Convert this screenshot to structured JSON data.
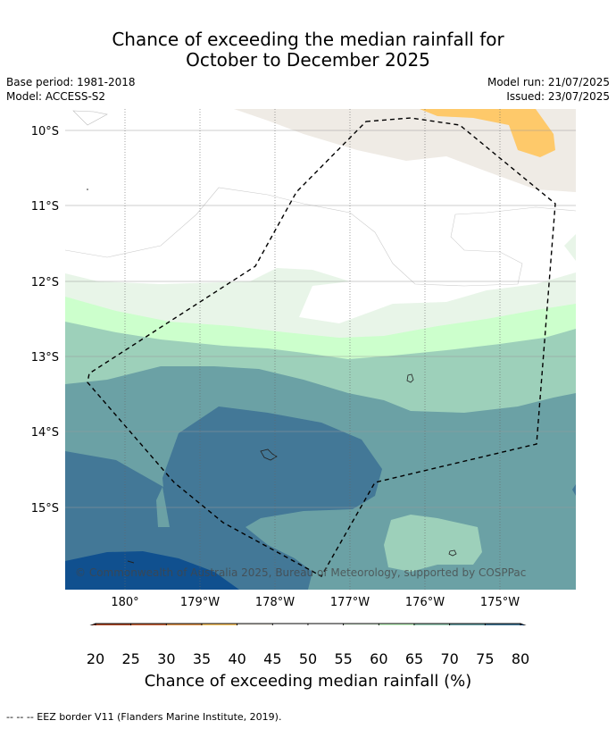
{
  "header": {
    "title_line1": "Chance of exceeding the median rainfall for",
    "title_line2": "October to December 2025",
    "base_period": "Base period: 1981-2018",
    "model": "Model: ACCESS-S2",
    "model_run": "Model run: 21/07/2025",
    "issued": "Issued: 23/07/2025"
  },
  "map": {
    "lat_labels": [
      "10°S",
      "11°S",
      "12°S",
      "13°S",
      "14°S",
      "15°S"
    ],
    "lon_labels": [
      "180°",
      "179°W",
      "178°W",
      "177°W",
      "176°W",
      "175°W"
    ],
    "copyright": "© Commonwealth of Australia 2025, Bureau of Meteorology, supported by COSPPac"
  },
  "colorbar": {
    "ticks": [
      "20",
      "25",
      "30",
      "35",
      "40",
      "45",
      "50",
      "55",
      "60",
      "65",
      "70",
      "75",
      "80"
    ],
    "colors": [
      "#b04a29",
      "#c9643a",
      "#e0964f",
      "#fec96a",
      "#efebe5",
      "#ffffff",
      "#ffffff",
      "#e8f5e8",
      "#ccffcc",
      "#9dd0ba",
      "#6ba1a5",
      "#437897"
    ],
    "under_color": "#9a4430",
    "over_color": "#10508f",
    "title": "Chance of exceeding median rainfall (%)"
  },
  "footnote": "-- -- -- EEZ border V11 (Flanders Marine Institute, 2019)."
}
